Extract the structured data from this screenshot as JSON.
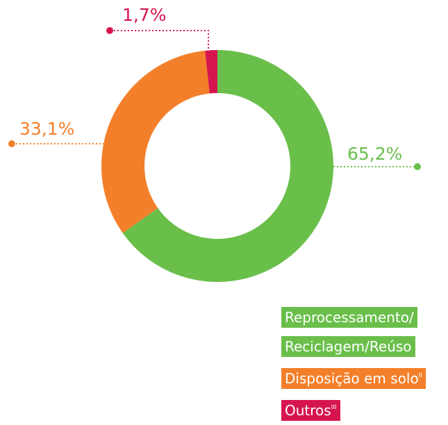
{
  "chart_data": {
    "type": "donut",
    "categories": [
      "Reprocessamento/ Reciclagem/Reúso",
      "Disposição em solo",
      "Outros"
    ],
    "category_notes": [
      null,
      "II",
      "III"
    ],
    "values": [
      65.2,
      33.1,
      1.7
    ],
    "value_labels": [
      "65,2%",
      "33,1%",
      "1,7%"
    ],
    "colors": [
      "#6abf4b",
      "#f47f2a",
      "#d6154f"
    ]
  }
}
